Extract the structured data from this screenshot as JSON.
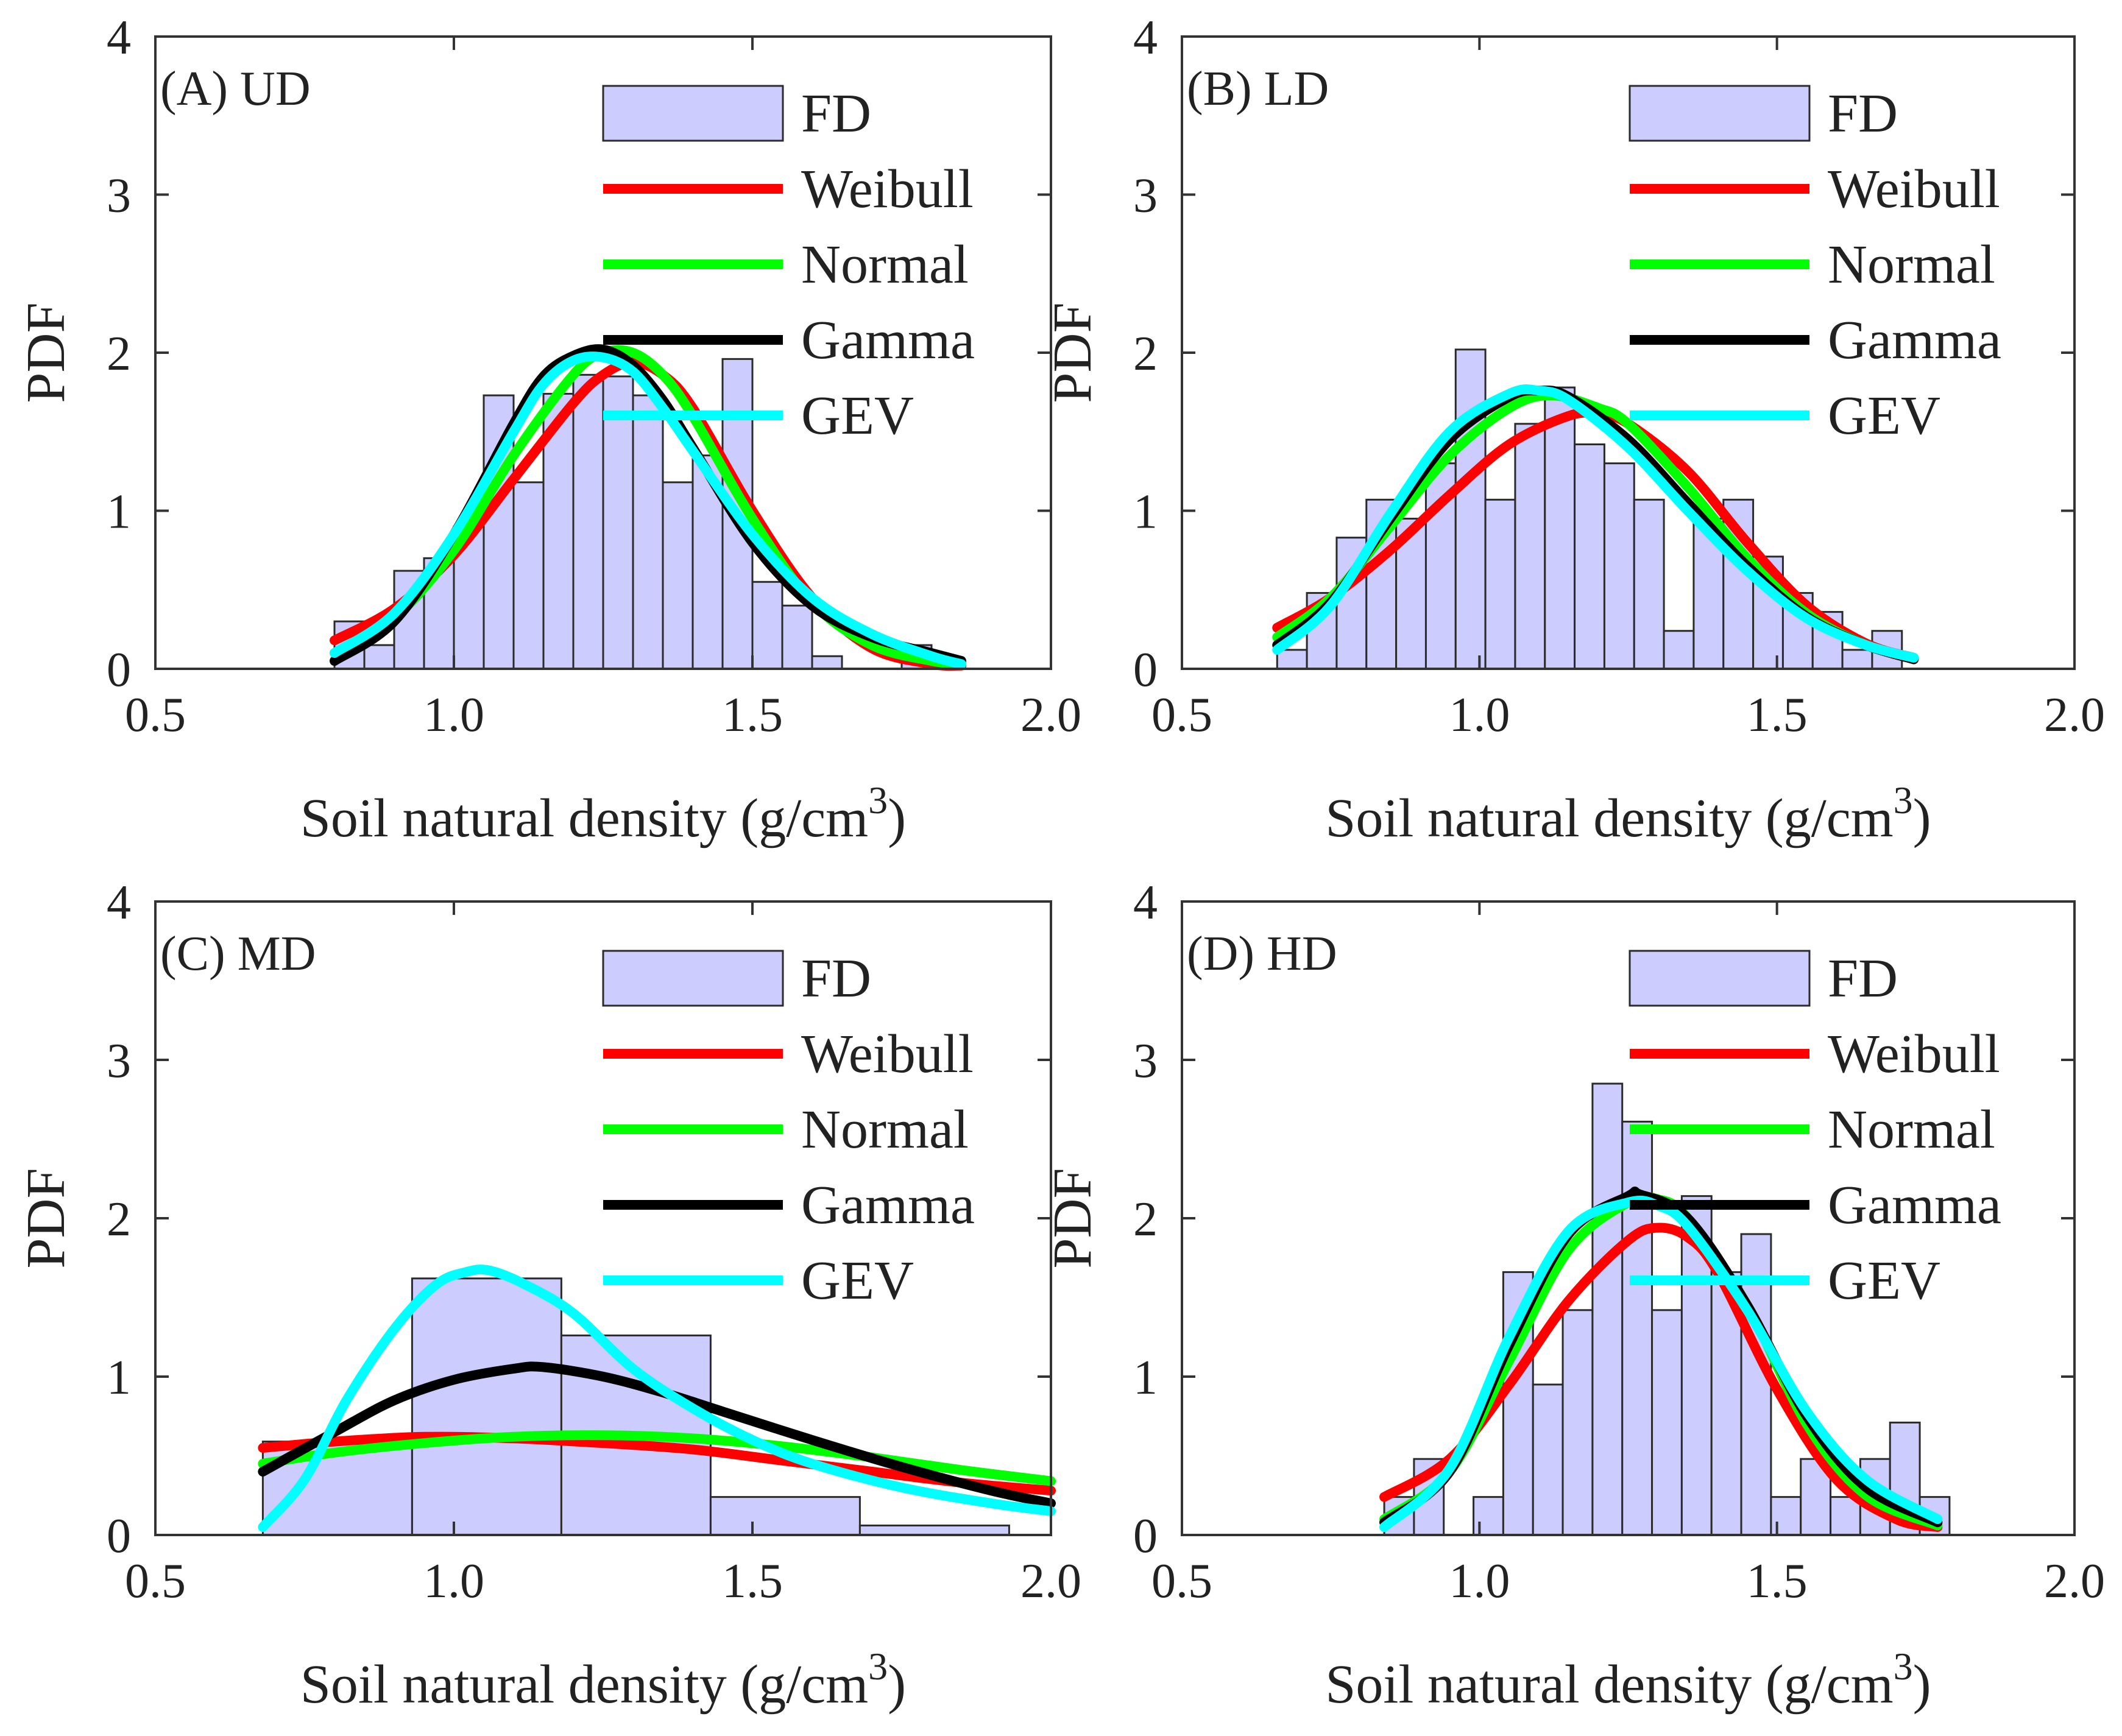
{
  "chart_data": [
    {
      "type": "bar",
      "panel": "A",
      "title": "(A) UD",
      "xlabel": "Soil natural density (g/cm",
      "xlabel_sup": "3",
      "xlabel_end": ")",
      "ylabel": "PDF",
      "xlim": [
        0.5,
        2.0
      ],
      "ylim": [
        0,
        4
      ],
      "xticks": [
        "0.5",
        "1.0",
        "1.5",
        "2.0"
      ],
      "yticks": [
        "0",
        "1",
        "2",
        "3",
        "4"
      ],
      "bin_edges": [
        0.8,
        0.85,
        0.9,
        0.95,
        1.0,
        1.05,
        1.1,
        1.15,
        1.2,
        1.25,
        1.3,
        1.35,
        1.4,
        1.45,
        1.5,
        1.55,
        1.6,
        1.65,
        1.7,
        1.75,
        1.8,
        1.85
      ],
      "values": [
        0.3,
        0.15,
        0.62,
        0.7,
        0.9,
        1.73,
        1.18,
        1.74,
        1.86,
        1.85,
        1.73,
        1.18,
        1.35,
        1.96,
        0.55,
        0.4,
        0.08,
        0.0,
        0.0,
        0.15,
        0.05
      ],
      "series": [
        {
          "name": "Weibull",
          "x": [
            0.8,
            0.9,
            1.0,
            1.1,
            1.2,
            1.25,
            1.3,
            1.35,
            1.4,
            1.5,
            1.6,
            1.7,
            1.8,
            1.85
          ],
          "values": [
            0.18,
            0.38,
            0.72,
            1.2,
            1.68,
            1.86,
            1.94,
            1.86,
            1.65,
            1.0,
            0.45,
            0.13,
            0.03,
            0.02
          ]
        },
        {
          "name": "Normal",
          "x": [
            0.8,
            0.9,
            1.0,
            1.1,
            1.2,
            1.25,
            1.3,
            1.35,
            1.4,
            1.5,
            1.6,
            1.7,
            1.8,
            1.85
          ],
          "values": [
            0.1,
            0.32,
            0.75,
            1.35,
            1.86,
            2.0,
            2.0,
            1.86,
            1.6,
            0.95,
            0.42,
            0.15,
            0.05,
            0.03
          ]
        },
        {
          "name": "Gamma",
          "x": [
            0.8,
            0.9,
            1.0,
            1.1,
            1.15,
            1.2,
            1.25,
            1.3,
            1.35,
            1.4,
            1.5,
            1.6,
            1.7,
            1.8,
            1.85
          ],
          "values": [
            0.05,
            0.3,
            0.85,
            1.55,
            1.85,
            1.98,
            2.02,
            1.92,
            1.7,
            1.4,
            0.8,
            0.4,
            0.2,
            0.1,
            0.05
          ]
        },
        {
          "name": "GEV",
          "x": [
            0.8,
            0.9,
            1.0,
            1.1,
            1.15,
            1.2,
            1.25,
            1.3,
            1.35,
            1.4,
            1.5,
            1.6,
            1.7,
            1.8,
            1.85
          ],
          "values": [
            0.1,
            0.35,
            0.85,
            1.5,
            1.8,
            1.95,
            1.97,
            1.88,
            1.65,
            1.38,
            0.85,
            0.45,
            0.22,
            0.08,
            0.03
          ]
        }
      ]
    },
    {
      "type": "bar",
      "panel": "B",
      "title": "(B) LD",
      "xlabel": "Soil natural density (g/cm",
      "xlabel_sup": "3",
      "xlabel_end": ")",
      "ylabel": "PDF",
      "xlim": [
        0.5,
        2.0
      ],
      "ylim": [
        0,
        4
      ],
      "xticks": [
        "0.5",
        "1.0",
        "1.5",
        "2.0"
      ],
      "yticks": [
        "0",
        "1",
        "2",
        "3",
        "4"
      ],
      "bin_edges": [
        0.66,
        0.71,
        0.76,
        0.81,
        0.86,
        0.91,
        0.96,
        1.01,
        1.06,
        1.11,
        1.16,
        1.21,
        1.26,
        1.31,
        1.36,
        1.41,
        1.46,
        1.51,
        1.56,
        1.61,
        1.66,
        1.71
      ],
      "values": [
        0.12,
        0.48,
        0.83,
        1.07,
        0.95,
        1.3,
        2.02,
        1.07,
        1.55,
        1.78,
        1.42,
        1.3,
        1.07,
        0.24,
        0.95,
        1.07,
        0.71,
        0.48,
        0.36,
        0.12,
        0.24
      ],
      "series": [
        {
          "name": "Weibull",
          "x": [
            0.66,
            0.75,
            0.85,
            0.95,
            1.05,
            1.15,
            1.2,
            1.25,
            1.35,
            1.45,
            1.55,
            1.65,
            1.73
          ],
          "values": [
            0.26,
            0.45,
            0.75,
            1.1,
            1.42,
            1.6,
            1.61,
            1.55,
            1.25,
            0.8,
            0.4,
            0.16,
            0.07
          ]
        },
        {
          "name": "Normal",
          "x": [
            0.66,
            0.75,
            0.85,
            0.95,
            1.05,
            1.12,
            1.2,
            1.25,
            1.35,
            1.45,
            1.55,
            1.65,
            1.73
          ],
          "values": [
            0.2,
            0.45,
            0.9,
            1.35,
            1.65,
            1.73,
            1.65,
            1.55,
            1.15,
            0.7,
            0.35,
            0.15,
            0.07
          ]
        },
        {
          "name": "Gamma",
          "x": [
            0.66,
            0.75,
            0.85,
            0.95,
            1.05,
            1.1,
            1.15,
            1.25,
            1.35,
            1.45,
            1.55,
            1.65,
            1.73
          ],
          "values": [
            0.15,
            0.42,
            0.95,
            1.45,
            1.72,
            1.76,
            1.72,
            1.45,
            1.05,
            0.65,
            0.33,
            0.15,
            0.06
          ]
        },
        {
          "name": "GEV",
          "x": [
            0.66,
            0.75,
            0.85,
            0.95,
            1.05,
            1.1,
            1.15,
            1.25,
            1.35,
            1.45,
            1.55,
            1.65,
            1.73
          ],
          "values": [
            0.12,
            0.4,
            0.98,
            1.5,
            1.74,
            1.76,
            1.7,
            1.4,
            1.0,
            0.62,
            0.32,
            0.15,
            0.07
          ]
        }
      ]
    },
    {
      "type": "bar",
      "panel": "C",
      "title": "(C) MD",
      "xlabel": "Soil natural density (g/cm",
      "xlabel_sup": "3",
      "xlabel_end": ")",
      "ylabel": "PDF",
      "xlim": [
        0.5,
        2.0
      ],
      "ylim": [
        0,
        4
      ],
      "xticks": [
        "0.5",
        "1.0",
        "1.5",
        "2.0"
      ],
      "yticks": [
        "0",
        "1",
        "2",
        "3",
        "4"
      ],
      "bin_edges": [
        0.68,
        0.93,
        1.18,
        1.43,
        1.68,
        1.93
      ],
      "values": [
        0.59,
        1.62,
        1.26,
        0.24,
        0.06
      ],
      "series": [
        {
          "name": "Weibull",
          "x": [
            0.68,
            0.8,
            0.95,
            1.1,
            1.25,
            1.4,
            1.55,
            1.7,
            1.85,
            2.0
          ],
          "values": [
            0.55,
            0.59,
            0.62,
            0.61,
            0.58,
            0.54,
            0.47,
            0.4,
            0.33,
            0.28
          ]
        },
        {
          "name": "Normal",
          "x": [
            0.68,
            0.8,
            0.95,
            1.1,
            1.25,
            1.4,
            1.55,
            1.7,
            1.85,
            2.0
          ],
          "values": [
            0.45,
            0.52,
            0.58,
            0.62,
            0.63,
            0.61,
            0.56,
            0.49,
            0.41,
            0.34
          ]
        },
        {
          "name": "Gamma",
          "x": [
            0.68,
            0.8,
            0.9,
            1.0,
            1.1,
            1.15,
            1.25,
            1.35,
            1.45,
            1.6,
            1.75,
            1.9,
            2.0
          ],
          "values": [
            0.4,
            0.65,
            0.85,
            0.98,
            1.05,
            1.06,
            1.0,
            0.9,
            0.78,
            0.6,
            0.43,
            0.28,
            0.2
          ]
        },
        {
          "name": "GEV",
          "x": [
            0.68,
            0.75,
            0.82,
            0.9,
            0.97,
            1.02,
            1.06,
            1.12,
            1.2,
            1.3,
            1.4,
            1.5,
            1.6,
            1.75,
            1.9,
            2.0
          ],
          "values": [
            0.05,
            0.35,
            0.85,
            1.3,
            1.58,
            1.66,
            1.67,
            1.58,
            1.4,
            1.05,
            0.8,
            0.6,
            0.45,
            0.3,
            0.2,
            0.15
          ]
        }
      ]
    },
    {
      "type": "bar",
      "panel": "D",
      "title": "(D) HD",
      "xlabel": "Soil natural density (g/cm",
      "xlabel_sup": "3",
      "xlabel_end": ")",
      "ylabel": "PDF",
      "xlim": [
        0.5,
        2.0
      ],
      "ylim": [
        0,
        4
      ],
      "xticks": [
        "0.5",
        "1.0",
        "1.5",
        "2.0"
      ],
      "yticks": [
        "0",
        "1",
        "2",
        "3",
        "4"
      ],
      "bin_edges": [
        0.84,
        0.89,
        0.94,
        0.99,
        1.04,
        1.09,
        1.14,
        1.19,
        1.24,
        1.29,
        1.34,
        1.39,
        1.44,
        1.49,
        1.54,
        1.59,
        1.64,
        1.69,
        1.74,
        1.79
      ],
      "values": [
        0.24,
        0.48,
        0.0,
        0.24,
        1.66,
        0.95,
        1.42,
        2.85,
        2.61,
        1.42,
        2.14,
        1.66,
        1.9,
        0.24,
        0.48,
        0.24,
        0.48,
        0.71,
        0.24
      ],
      "series": [
        {
          "name": "Weibull",
          "x": [
            0.84,
            0.95,
            1.05,
            1.15,
            1.25,
            1.3,
            1.35,
            1.4,
            1.5,
            1.6,
            1.7,
            1.77
          ],
          "values": [
            0.24,
            0.48,
            0.95,
            1.48,
            1.86,
            1.94,
            1.88,
            1.66,
            0.92,
            0.35,
            0.1,
            0.05
          ]
        },
        {
          "name": "Normal",
          "x": [
            0.84,
            0.95,
            1.05,
            1.15,
            1.25,
            1.3,
            1.35,
            1.45,
            1.55,
            1.65,
            1.77
          ],
          "values": [
            0.1,
            0.4,
            1.1,
            1.8,
            2.1,
            2.12,
            2.0,
            1.45,
            0.7,
            0.25,
            0.06
          ]
        },
        {
          "name": "Gamma",
          "x": [
            0.84,
            0.95,
            1.05,
            1.15,
            1.25,
            1.27,
            1.35,
            1.45,
            1.55,
            1.65,
            1.77
          ],
          "values": [
            0.08,
            0.4,
            1.2,
            1.9,
            2.14,
            2.15,
            2.0,
            1.45,
            0.75,
            0.3,
            0.08
          ]
        },
        {
          "name": "GEV",
          "x": [
            0.84,
            0.95,
            1.05,
            1.15,
            1.25,
            1.3,
            1.35,
            1.45,
            1.55,
            1.65,
            1.77
          ],
          "values": [
            0.05,
            0.42,
            1.25,
            1.92,
            2.1,
            2.08,
            1.95,
            1.42,
            0.78,
            0.35,
            0.1
          ]
        }
      ]
    }
  ],
  "legend": [
    {
      "label": "FD",
      "kind": "patch",
      "color": "#ccccff"
    },
    {
      "label": "Weibull",
      "kind": "line",
      "color": "#ff0000"
    },
    {
      "label": "Normal",
      "kind": "line",
      "color": "#00ff00"
    },
    {
      "label": "Gamma",
      "kind": "line",
      "color": "#000000"
    },
    {
      "label": "GEV",
      "kind": "line",
      "color": "#00ffff"
    }
  ]
}
